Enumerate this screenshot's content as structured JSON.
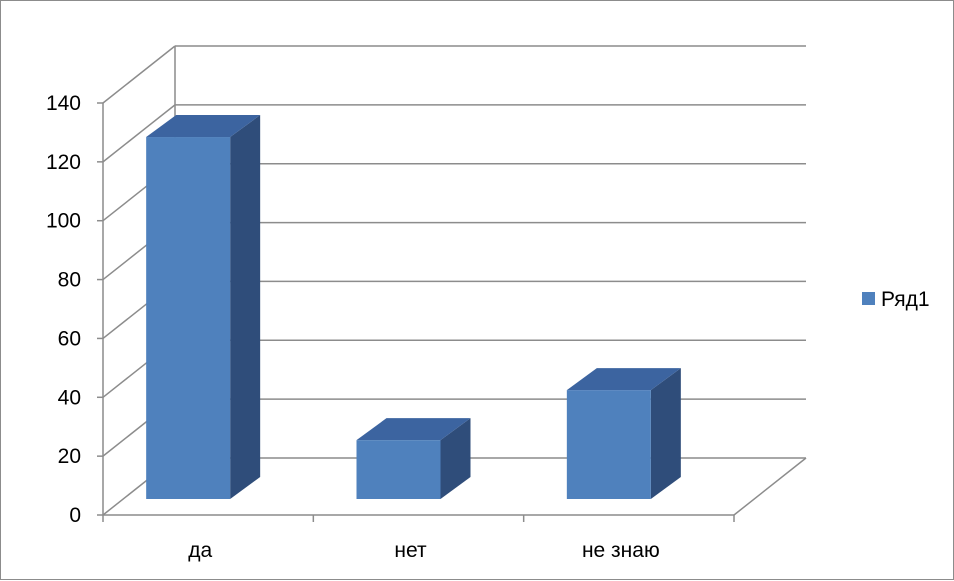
{
  "chart_data": {
    "type": "bar",
    "style": "3d-column",
    "categories": [
      "да",
      "нет",
      "не знаю"
    ],
    "series": [
      {
        "name": "Ряд1",
        "values": [
          123,
          20,
          37
        ],
        "color": "#4f81bd"
      }
    ],
    "ylim": [
      0,
      140
    ],
    "yticks": [
      "0",
      "20",
      "40",
      "60",
      "80",
      "100",
      "120",
      "140"
    ],
    "grid": true,
    "legend_position": "right"
  }
}
